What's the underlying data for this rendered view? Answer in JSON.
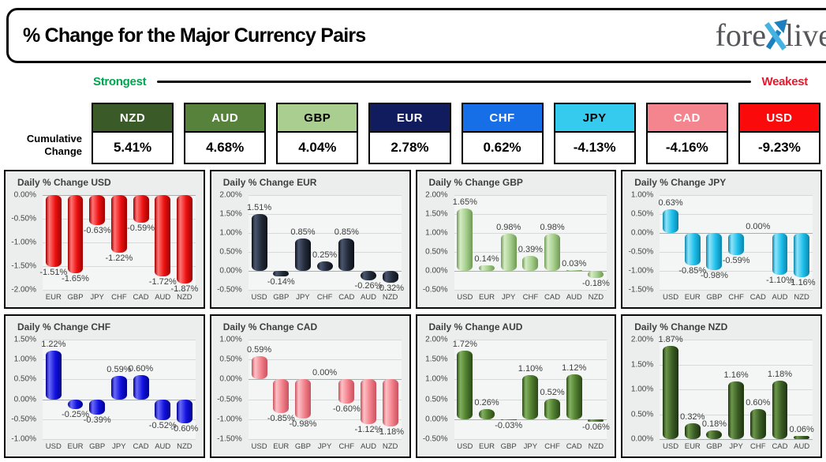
{
  "header": {
    "title": "% Change for the Major Currency Pairs",
    "logo_part1": "fore",
    "logo_part2": "live"
  },
  "scale_bar": {
    "strongest": "Strongest",
    "weakest": "Weakest",
    "strongest_color": "#00A550",
    "weakest_color": "#E8192C"
  },
  "cumulative": {
    "label_line1": "Cumulative",
    "label_line2": "Change",
    "items": [
      {
        "currency": "NZD",
        "value": "5.41%",
        "bg": "#3A5A28",
        "fg": "#FFFFFF"
      },
      {
        "currency": "AUD",
        "value": "4.68%",
        "bg": "#57823B",
        "fg": "#FFFFFF"
      },
      {
        "currency": "GBP",
        "value": "4.04%",
        "bg": "#A9CE90",
        "fg": "#000000"
      },
      {
        "currency": "EUR",
        "value": "2.78%",
        "bg": "#101C5E",
        "fg": "#FFFFFF"
      },
      {
        "currency": "CHF",
        "value": "0.62%",
        "bg": "#176FE8",
        "fg": "#FFFFFF"
      },
      {
        "currency": "JPY",
        "value": "-4.13%",
        "bg": "#35CBEF",
        "fg": "#000000"
      },
      {
        "currency": "CAD",
        "value": "-4.16%",
        "bg": "#F4858E",
        "fg": "#FFFFFF"
      },
      {
        "currency": "USD",
        "value": "-9.23%",
        "bg": "#FA0A0A",
        "fg": "#FFFFFF"
      }
    ]
  },
  "chart_data": [
    {
      "type": "bar",
      "currency": "USD",
      "title": "Daily % Change USD",
      "categories": [
        "EUR",
        "GBP",
        "JPY",
        "CHF",
        "CAD",
        "AUD",
        "NZD"
      ],
      "values": [
        -1.51,
        -1.65,
        -0.63,
        -1.22,
        -0.59,
        -1.72,
        -1.87
      ],
      "ylim": [
        -2.0,
        0.0
      ],
      "yticks": [
        0.0,
        -0.5,
        -1.0,
        -1.5,
        -2.0
      ],
      "bar_color": "#EE1111",
      "bar_light": "#FF7575",
      "bar_dark": "#9E0000"
    },
    {
      "type": "bar",
      "currency": "EUR",
      "title": "Daily % Change EUR",
      "categories": [
        "USD",
        "GBP",
        "JPY",
        "CHF",
        "CAD",
        "AUD",
        "NZD"
      ],
      "values": [
        1.51,
        -0.14,
        0.85,
        0.25,
        0.85,
        -0.26,
        -0.32
      ],
      "ylim": [
        -0.5,
        2.0
      ],
      "yticks": [
        2.0,
        1.5,
        1.0,
        0.5,
        0.0,
        -0.5
      ],
      "bar_color": "#242C3B",
      "bar_light": "#4A5670",
      "bar_dark": "#0D1118"
    },
    {
      "type": "bar",
      "currency": "GBP",
      "title": "Daily % Change GBP",
      "categories": [
        "USD",
        "EUR",
        "JPY",
        "CHF",
        "CAD",
        "AUD",
        "NZD"
      ],
      "values": [
        1.65,
        0.14,
        0.98,
        0.39,
        0.98,
        0.03,
        -0.18
      ],
      "ylim": [
        -0.5,
        2.0
      ],
      "yticks": [
        2.0,
        1.5,
        1.0,
        0.5,
        0.0,
        -0.5
      ],
      "bar_color": "#A5CE8C",
      "bar_light": "#D6ECC6",
      "bar_dark": "#6F9A55"
    },
    {
      "type": "bar",
      "currency": "JPY",
      "title": "Daily % Change JPY",
      "categories": [
        "USD",
        "EUR",
        "GBP",
        "CHF",
        "CAD",
        "AUD",
        "NZD"
      ],
      "values": [
        0.63,
        -0.85,
        -0.98,
        -0.59,
        0.0,
        -1.1,
        -1.16
      ],
      "ylim": [
        -1.5,
        1.0
      ],
      "yticks": [
        1.0,
        0.5,
        0.0,
        -0.5,
        -1.0,
        -1.5
      ],
      "bar_color": "#1EC0EC",
      "bar_light": "#90E4F9",
      "bar_dark": "#0A85AC"
    },
    {
      "type": "bar",
      "currency": "CHF",
      "title": "Daily % Change CHF",
      "categories": [
        "USD",
        "EUR",
        "GBP",
        "JPY",
        "CAD",
        "AUD",
        "NZD"
      ],
      "values": [
        1.22,
        -0.25,
        -0.39,
        0.59,
        0.6,
        -0.52,
        -0.6
      ],
      "ylim": [
        -1.0,
        1.5
      ],
      "yticks": [
        1.5,
        1.0,
        0.5,
        0.0,
        -0.5,
        -1.0
      ],
      "bar_color": "#1212E0",
      "bar_light": "#6A6AF8",
      "bar_dark": "#000090"
    },
    {
      "type": "bar",
      "currency": "CAD",
      "title": "Daily % Change CAD",
      "categories": [
        "USD",
        "EUR",
        "GBP",
        "JPY",
        "CHF",
        "AUD",
        "NZD"
      ],
      "values": [
        0.59,
        -0.85,
        -0.98,
        0.0,
        -0.6,
        -1.12,
        -1.18
      ],
      "ylim": [
        -1.5,
        1.0
      ],
      "yticks": [
        1.0,
        0.5,
        0.0,
        -0.5,
        -1.0,
        -1.5
      ],
      "bar_color": "#F3818B",
      "bar_light": "#FBC2C6",
      "bar_dark": "#C9525E"
    },
    {
      "type": "bar",
      "currency": "AUD",
      "title": "Daily % Change AUD",
      "categories": [
        "USD",
        "EUR",
        "GBP",
        "JPY",
        "CHF",
        "CAD",
        "NZD"
      ],
      "values": [
        1.72,
        0.26,
        -0.03,
        1.1,
        0.52,
        1.12,
        -0.06
      ],
      "ylim": [
        -0.5,
        2.0
      ],
      "yticks": [
        2.0,
        1.5,
        1.0,
        0.5,
        0.0,
        -0.5
      ],
      "bar_color": "#4F7D2F",
      "bar_light": "#82B15E",
      "bar_dark": "#2C4A18"
    },
    {
      "type": "bar",
      "currency": "NZD",
      "title": "Daily % Change NZD",
      "categories": [
        "USD",
        "EUR",
        "GBP",
        "JPY",
        "CHF",
        "CAD",
        "AUD"
      ],
      "values": [
        1.87,
        0.32,
        0.18,
        1.16,
        0.6,
        1.18,
        0.06
      ],
      "ylim": [
        0.0,
        2.0
      ],
      "yticks": [
        2.0,
        1.5,
        1.0,
        0.5,
        0.0
      ],
      "bar_color": "#3C5E26",
      "bar_light": "#6C974A",
      "bar_dark": "#1E340F"
    }
  ]
}
